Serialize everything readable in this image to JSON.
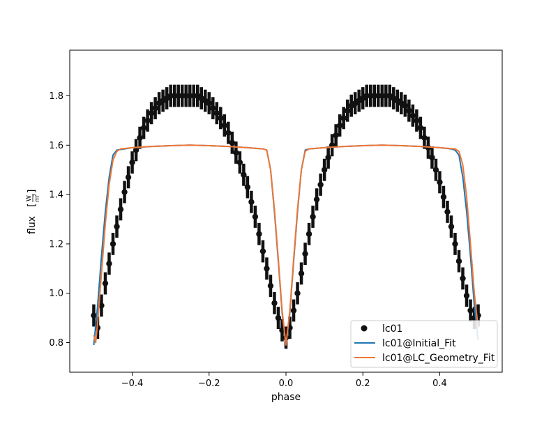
{
  "chart_data": {
    "type": "scatter",
    "xlabel": "phase",
    "ylabel": "flux",
    "ylabel_unit_num": "W",
    "ylabel_unit_den": "m",
    "ylabel_unit_exp": "2",
    "xlim": [
      -0.5625,
      0.5625
    ],
    "ylim": [
      0.68,
      1.985
    ],
    "xticks": [
      -0.4,
      -0.2,
      0.0,
      0.2,
      0.4
    ],
    "xtick_labels": [
      "−0.4",
      "−0.2",
      "0.0",
      "0.2",
      "0.4"
    ],
    "yticks": [
      0.8,
      1.0,
      1.2,
      1.4,
      1.6,
      1.8
    ],
    "ytick_labels": [
      "0.8",
      "1.0",
      "1.2",
      "1.4",
      "1.6",
      "1.8"
    ],
    "grid": false,
    "legend_position": "lower-right",
    "series": [
      {
        "name": "lc01",
        "kind": "scatter-errorbar",
        "color": "#111111",
        "error": 0.045,
        "points": [
          [
            -0.5,
            0.91
          ],
          [
            -0.49,
            0.86
          ],
          [
            -0.48,
            0.95
          ],
          [
            -0.47,
            1.04
          ],
          [
            -0.46,
            1.12
          ],
          [
            -0.45,
            1.2
          ],
          [
            -0.44,
            1.27
          ],
          [
            -0.43,
            1.34
          ],
          [
            -0.42,
            1.41
          ],
          [
            -0.41,
            1.47
          ],
          [
            -0.4,
            1.53
          ],
          [
            -0.39,
            1.58
          ],
          [
            -0.38,
            1.63
          ],
          [
            -0.37,
            1.67
          ],
          [
            -0.36,
            1.7
          ],
          [
            -0.35,
            1.73
          ],
          [
            -0.34,
            1.75
          ],
          [
            -0.33,
            1.77
          ],
          [
            -0.32,
            1.78
          ],
          [
            -0.31,
            1.79
          ],
          [
            -0.3,
            1.8
          ],
          [
            -0.29,
            1.8
          ],
          [
            -0.28,
            1.8
          ],
          [
            -0.27,
            1.8
          ],
          [
            -0.26,
            1.8
          ],
          [
            -0.25,
            1.8
          ],
          [
            -0.24,
            1.8
          ],
          [
            -0.23,
            1.8
          ],
          [
            -0.22,
            1.79
          ],
          [
            -0.21,
            1.78
          ],
          [
            -0.2,
            1.77
          ],
          [
            -0.19,
            1.75
          ],
          [
            -0.18,
            1.73
          ],
          [
            -0.17,
            1.71
          ],
          [
            -0.16,
            1.68
          ],
          [
            -0.15,
            1.65
          ],
          [
            -0.14,
            1.61
          ],
          [
            -0.13,
            1.57
          ],
          [
            -0.12,
            1.53
          ],
          [
            -0.11,
            1.48
          ],
          [
            -0.1,
            1.43
          ],
          [
            -0.09,
            1.37
          ],
          [
            -0.08,
            1.31
          ],
          [
            -0.07,
            1.24
          ],
          [
            -0.06,
            1.17
          ],
          [
            -0.05,
            1.1
          ],
          [
            -0.04,
            1.03
          ],
          [
            -0.03,
            0.96
          ],
          [
            -0.02,
            0.9
          ],
          [
            -0.01,
            0.85
          ],
          [
            0.0,
            0.82
          ],
          [
            0.01,
            0.86
          ],
          [
            0.02,
            0.93
          ],
          [
            0.03,
            1.0
          ],
          [
            0.04,
            1.08
          ],
          [
            0.05,
            1.16
          ],
          [
            0.06,
            1.24
          ],
          [
            0.07,
            1.31
          ],
          [
            0.08,
            1.38
          ],
          [
            0.09,
            1.44
          ],
          [
            0.1,
            1.5
          ],
          [
            0.11,
            1.55
          ],
          [
            0.12,
            1.6
          ],
          [
            0.13,
            1.64
          ],
          [
            0.14,
            1.68
          ],
          [
            0.15,
            1.71
          ],
          [
            0.16,
            1.74
          ],
          [
            0.17,
            1.76
          ],
          [
            0.18,
            1.77
          ],
          [
            0.19,
            1.78
          ],
          [
            0.2,
            1.79
          ],
          [
            0.21,
            1.8
          ],
          [
            0.22,
            1.8
          ],
          [
            0.23,
            1.8
          ],
          [
            0.24,
            1.8
          ],
          [
            0.25,
            1.8
          ],
          [
            0.26,
            1.8
          ],
          [
            0.27,
            1.8
          ],
          [
            0.28,
            1.79
          ],
          [
            0.29,
            1.78
          ],
          [
            0.3,
            1.77
          ],
          [
            0.31,
            1.76
          ],
          [
            0.32,
            1.74
          ],
          [
            0.33,
            1.72
          ],
          [
            0.34,
            1.7
          ],
          [
            0.35,
            1.67
          ],
          [
            0.36,
            1.63
          ],
          [
            0.37,
            1.59
          ],
          [
            0.38,
            1.55
          ],
          [
            0.39,
            1.5
          ],
          [
            0.4,
            1.45
          ],
          [
            0.41,
            1.39
          ],
          [
            0.42,
            1.33
          ],
          [
            0.43,
            1.27
          ],
          [
            0.44,
            1.2
          ],
          [
            0.45,
            1.13
          ],
          [
            0.46,
            1.06
          ],
          [
            0.47,
            0.99
          ],
          [
            0.48,
            0.93
          ],
          [
            0.49,
            0.9
          ],
          [
            0.5,
            0.91
          ]
        ]
      },
      {
        "name": "lc01@Initial_Fit",
        "kind": "line",
        "color": "#1f77b4",
        "points": [
          [
            -0.5,
            0.79
          ],
          [
            -0.49,
            0.95
          ],
          [
            -0.48,
            1.15
          ],
          [
            -0.47,
            1.33
          ],
          [
            -0.46,
            1.47
          ],
          [
            -0.45,
            1.56
          ],
          [
            -0.44,
            1.58
          ],
          [
            -0.42,
            1.585
          ],
          [
            -0.4,
            1.59
          ],
          [
            -0.35,
            1.595
          ],
          [
            -0.3,
            1.598
          ],
          [
            -0.25,
            1.6
          ],
          [
            -0.2,
            1.598
          ],
          [
            -0.15,
            1.595
          ],
          [
            -0.1,
            1.59
          ],
          [
            -0.06,
            1.585
          ],
          [
            -0.05,
            1.58
          ],
          [
            -0.04,
            1.5
          ],
          [
            -0.03,
            1.33
          ],
          [
            -0.02,
            1.13
          ],
          [
            -0.01,
            0.92
          ],
          [
            0.0,
            0.79
          ],
          [
            0.01,
            0.92
          ],
          [
            0.02,
            1.13
          ],
          [
            0.03,
            1.33
          ],
          [
            0.04,
            1.5
          ],
          [
            0.05,
            1.58
          ],
          [
            0.06,
            1.585
          ],
          [
            0.1,
            1.59
          ],
          [
            0.15,
            1.595
          ],
          [
            0.2,
            1.598
          ],
          [
            0.25,
            1.6
          ],
          [
            0.3,
            1.598
          ],
          [
            0.35,
            1.595
          ],
          [
            0.4,
            1.59
          ],
          [
            0.43,
            1.585
          ],
          [
            0.44,
            1.58
          ],
          [
            0.45,
            1.56
          ],
          [
            0.46,
            1.47
          ],
          [
            0.47,
            1.33
          ],
          [
            0.48,
            1.15
          ],
          [
            0.49,
            0.95
          ],
          [
            0.5,
            0.81
          ]
        ]
      },
      {
        "name": "lc01@LC_Geometry_Fit",
        "kind": "line",
        "color": "#f07736",
        "points": [
          [
            -0.5,
            0.83
          ],
          [
            -0.495,
            0.8
          ],
          [
            -0.49,
            0.88
          ],
          [
            -0.48,
            1.08
          ],
          [
            -0.47,
            1.28
          ],
          [
            -0.46,
            1.44
          ],
          [
            -0.45,
            1.54
          ],
          [
            -0.44,
            1.575
          ],
          [
            -0.43,
            1.585
          ],
          [
            -0.4,
            1.59
          ],
          [
            -0.35,
            1.595
          ],
          [
            -0.3,
            1.598
          ],
          [
            -0.25,
            1.6
          ],
          [
            -0.2,
            1.598
          ],
          [
            -0.15,
            1.595
          ],
          [
            -0.1,
            1.59
          ],
          [
            -0.06,
            1.585
          ],
          [
            -0.05,
            1.58
          ],
          [
            -0.04,
            1.5
          ],
          [
            -0.03,
            1.34
          ],
          [
            -0.02,
            1.14
          ],
          [
            -0.01,
            0.93
          ],
          [
            0.0,
            0.79
          ],
          [
            0.01,
            0.93
          ],
          [
            0.02,
            1.14
          ],
          [
            0.03,
            1.34
          ],
          [
            0.04,
            1.5
          ],
          [
            0.05,
            1.575
          ],
          [
            0.06,
            1.585
          ],
          [
            0.1,
            1.59
          ],
          [
            0.15,
            1.595
          ],
          [
            0.2,
            1.598
          ],
          [
            0.25,
            1.6
          ],
          [
            0.3,
            1.598
          ],
          [
            0.35,
            1.595
          ],
          [
            0.4,
            1.59
          ],
          [
            0.44,
            1.585
          ],
          [
            0.45,
            1.575
          ],
          [
            0.46,
            1.52
          ],
          [
            0.47,
            1.39
          ],
          [
            0.48,
            1.2
          ],
          [
            0.49,
            1.0
          ],
          [
            0.5,
            0.86
          ]
        ]
      }
    ]
  }
}
